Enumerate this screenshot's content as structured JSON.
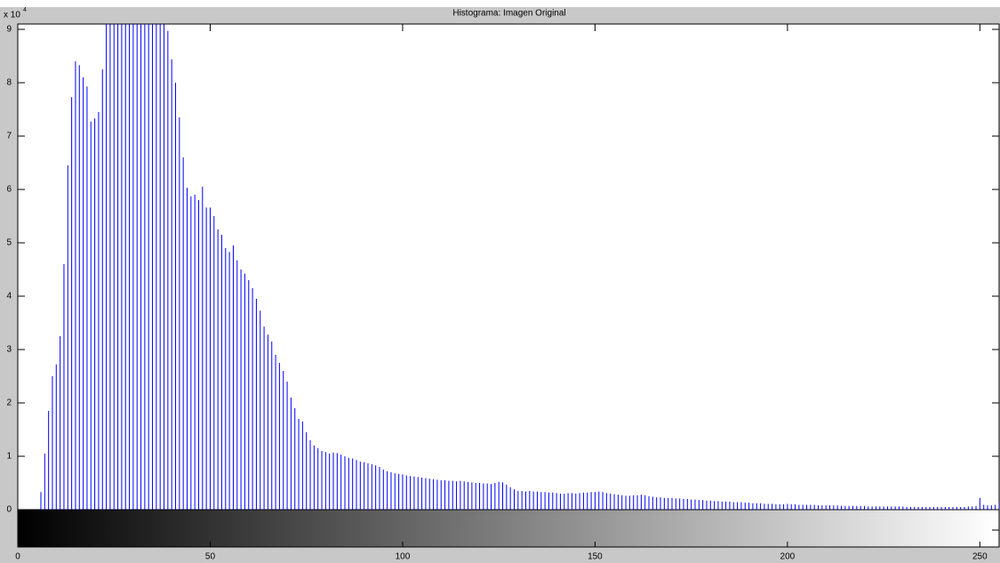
{
  "chart_data": {
    "type": "stem",
    "title": "Histograma: Imagen Original",
    "y_multiplier": "x 10",
    "y_multiplier_exponent": "4",
    "color": "#0000ff",
    "xlim": [
      0,
      255
    ],
    "xticks": [
      0,
      50,
      100,
      150,
      200,
      250
    ],
    "ylim": [
      0,
      91000
    ],
    "yticks": [
      0,
      {
        "value": 10000,
        "label": "1"
      },
      {
        "value": 20000,
        "label": "2"
      },
      {
        "value": 30000,
        "label": "3"
      },
      {
        "value": 40000,
        "label": "4"
      },
      {
        "value": 50000,
        "label": "5"
      },
      {
        "value": 60000,
        "label": "6"
      },
      {
        "value": 70000,
        "label": "7"
      },
      {
        "value": 80000,
        "label": "8"
      },
      {
        "value": 90000,
        "label": "9"
      }
    ],
    "x": [
      0,
      1,
      2,
      3,
      4,
      5,
      6,
      7,
      8,
      9,
      10,
      11,
      12,
      13,
      14,
      15,
      16,
      17,
      18,
      19,
      20,
      21,
      22,
      23,
      24,
      25,
      26,
      27,
      28,
      29,
      30,
      31,
      32,
      33,
      34,
      35,
      36,
      37,
      38,
      39,
      40,
      41,
      42,
      43,
      44,
      45,
      46,
      47,
      48,
      49,
      50,
      51,
      52,
      53,
      54,
      55,
      56,
      57,
      58,
      59,
      60,
      61,
      62,
      63,
      64,
      65,
      66,
      67,
      68,
      69,
      70,
      71,
      72,
      73,
      74,
      75,
      76,
      77,
      78,
      79,
      80,
      81,
      82,
      83,
      84,
      85,
      86,
      87,
      88,
      89,
      90,
      91,
      92,
      93,
      94,
      95,
      96,
      97,
      98,
      99,
      100,
      101,
      102,
      103,
      104,
      105,
      106,
      107,
      108,
      109,
      110,
      111,
      112,
      113,
      114,
      115,
      116,
      117,
      118,
      119,
      120,
      121,
      122,
      123,
      124,
      125,
      126,
      127,
      128,
      129,
      130,
      131,
      132,
      133,
      134,
      135,
      136,
      137,
      138,
      139,
      140,
      141,
      142,
      143,
      144,
      145,
      146,
      147,
      148,
      149,
      150,
      151,
      152,
      153,
      154,
      155,
      156,
      157,
      158,
      159,
      160,
      161,
      162,
      163,
      164,
      165,
      166,
      167,
      168,
      169,
      170,
      171,
      172,
      173,
      174,
      175,
      176,
      177,
      178,
      179,
      180,
      181,
      182,
      183,
      184,
      185,
      186,
      187,
      188,
      189,
      190,
      191,
      192,
      193,
      194,
      195,
      196,
      197,
      198,
      199,
      200,
      201,
      202,
      203,
      204,
      205,
      206,
      207,
      208,
      209,
      210,
      211,
      212,
      213,
      214,
      215,
      216,
      217,
      218,
      219,
      220,
      221,
      222,
      223,
      224,
      225,
      226,
      227,
      228,
      229,
      230,
      231,
      232,
      233,
      234,
      235,
      236,
      237,
      238,
      239,
      240,
      241,
      242,
      243,
      244,
      245,
      246,
      247,
      248,
      249,
      250,
      251,
      252,
      253,
      254,
      255
    ],
    "values": [
      0,
      0,
      0,
      0,
      0,
      0,
      3300,
      10500,
      18500,
      25000,
      27200,
      32500,
      46000,
      64500,
      77300,
      84000,
      83300,
      81000,
      79300,
      72700,
      73300,
      74500,
      82500,
      91000,
      91000,
      91000,
      91000,
      91000,
      91000,
      91000,
      91000,
      91000,
      91000,
      91000,
      91000,
      91000,
      91000,
      91000,
      91000,
      89700,
      84400,
      80000,
      73500,
      66000,
      60300,
      58700,
      59000,
      58000,
      60500,
      56600,
      56600,
      55000,
      52500,
      51500,
      49000,
      48300,
      49500,
      46700,
      45000,
      44200,
      43000,
      41500,
      39500,
      37300,
      34300,
      32800,
      31500,
      29000,
      27500,
      26000,
      24000,
      21000,
      19000,
      17000,
      16500,
      14500,
      13000,
      12000,
      11500,
      11000,
      10800,
      10500,
      10700,
      10600,
      10300,
      10000,
      9700,
      9600,
      9300,
      9000,
      8900,
      8700,
      8500,
      8300,
      8000,
      7500,
      7200,
      7000,
      6800,
      6700,
      6600,
      6400,
      6300,
      6200,
      6100,
      6000,
      5900,
      5800,
      5700,
      5600,
      5500,
      5500,
      5400,
      5400,
      5300,
      5400,
      5300,
      5200,
      5100,
      5000,
      5000,
      4900,
      4900,
      4800,
      5000,
      5200,
      5100,
      4700,
      4200,
      3800,
      3500,
      3500,
      3400,
      3500,
      3400,
      3400,
      3300,
      3300,
      3200,
      3200,
      3100,
      3000,
      3000,
      3100,
      3100,
      3000,
      3100,
      3200,
      3200,
      3300,
      3300,
      3400,
      3300,
      3100,
      3000,
      2900,
      2800,
      2700,
      2600,
      2600,
      2700,
      2700,
      2800,
      2700,
      2500,
      2400,
      2300,
      2300,
      2200,
      2200,
      2200,
      2100,
      2100,
      2000,
      2000,
      1900,
      1900,
      1800,
      1800,
      1700,
      1700,
      1600,
      1600,
      1500,
      1500,
      1500,
      1400,
      1400,
      1400,
      1300,
      1300,
      1200,
      1200,
      1200,
      1100,
      1100,
      1100,
      1000,
      1000,
      1000,
      1100,
      1000,
      1000,
      900,
      900,
      900,
      900,
      900,
      800,
      800,
      800,
      800,
      800,
      800,
      700,
      700,
      700,
      700,
      700,
      700,
      700,
      600,
      600,
      600,
      600,
      600,
      600,
      600,
      600,
      600,
      600,
      500,
      500,
      500,
      500,
      500,
      500,
      500,
      500,
      500,
      500,
      500,
      500,
      500,
      500,
      500,
      500,
      600,
      600,
      700,
      2200,
      900,
      800,
      800,
      900,
      1500
    ]
  }
}
